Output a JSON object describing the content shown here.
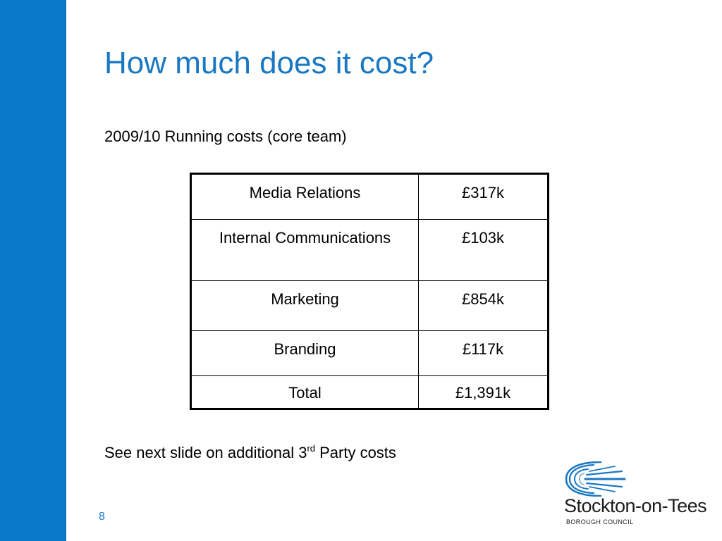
{
  "slide": {
    "title": "How much does it cost?",
    "subtitle": "2009/10 Running costs (core team)",
    "accent_color": "#0a77c7",
    "title_color": "#1a78c2"
  },
  "cost_table": {
    "rows": [
      {
        "label": "Media Relations",
        "value": "£317k"
      },
      {
        "label": "Internal Communications",
        "value": "£103k"
      },
      {
        "label": "Marketing",
        "value": "£854k"
      },
      {
        "label": "Branding",
        "value": "£117k"
      },
      {
        "label": "Total",
        "value": "£1,391k"
      }
    ]
  },
  "footnote": {
    "text_before": "See next slide on additional 3",
    "superscript": "rd",
    "text_after": " Party costs"
  },
  "page_number": "8",
  "logo": {
    "icon": "concentric-arcs-icon",
    "name": "Stockton-on-Tees",
    "subtitle": "BOROUGH COUNCIL"
  }
}
